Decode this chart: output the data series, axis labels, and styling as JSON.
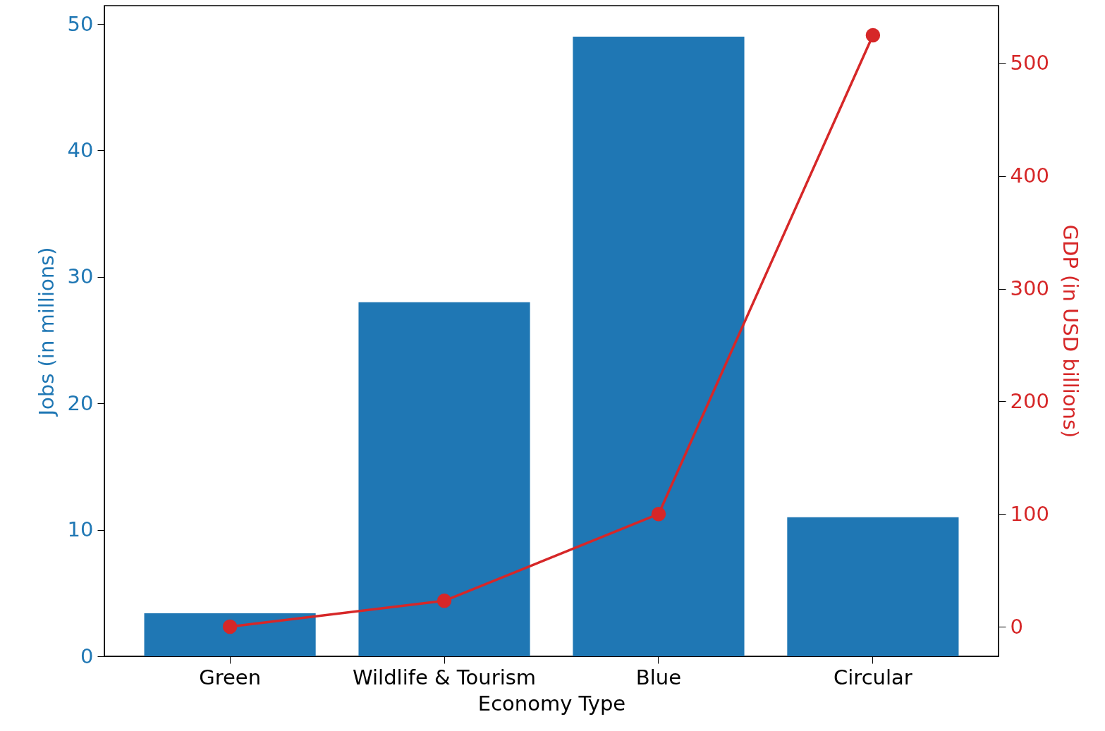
{
  "chart_data": {
    "type": "bar",
    "xlabel": "Economy Type",
    "ylabel": "Jobs (in millions)",
    "y2label": "GDP (in USD billions)",
    "categories": [
      "Green",
      "Wildlife & Tourism",
      "Blue",
      "Circular"
    ],
    "series": [
      {
        "color": "#1f77b4",
        "values": [
          3.4,
          28,
          49,
          11
        ]
      },
      {
        "type": "line",
        "axis": "y2",
        "color": "#d62728",
        "values": [
          0,
          23,
          100,
          525
        ]
      }
    ],
    "ylim": [
      0,
      51.45
    ],
    "yticks": [
      0,
      10,
      20,
      30,
      40,
      50
    ],
    "y2lim": [
      -26.25,
      551.25
    ],
    "y2ticks": [
      0,
      100,
      200,
      300,
      400,
      500
    ],
    "marker": "circle",
    "grid": false
  }
}
